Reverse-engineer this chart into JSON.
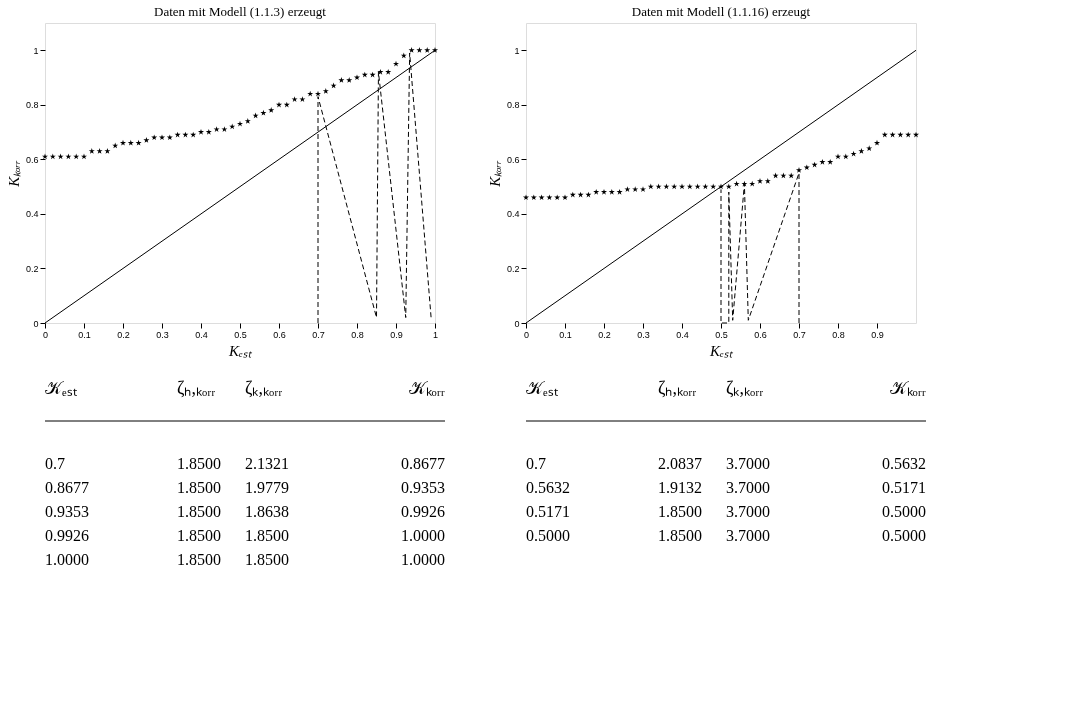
{
  "chart_data": [
    {
      "type": "scatter",
      "title": "Daten mit Modell (1.1.3) erzeugt",
      "xlabel": "Kₑₛₜ",
      "ylabel": "Kₖₒᵣᵣ",
      "xlim": [
        0,
        1
      ],
      "ylim": [
        0,
        1.1
      ],
      "xticks": [
        0,
        0.1,
        0.2,
        0.3,
        0.4,
        0.5,
        0.6,
        0.7,
        0.8,
        0.9,
        1
      ],
      "yticks": [
        0,
        0.2,
        0.4,
        0.6,
        0.8,
        1
      ],
      "grid": false,
      "series": [
        {
          "marker": "star",
          "color": "#000000",
          "x": [
            0,
            0.02,
            0.04,
            0.06,
            0.08,
            0.1,
            0.12,
            0.14,
            0.16,
            0.18,
            0.2,
            0.22,
            0.24,
            0.26,
            0.28,
            0.3,
            0.32,
            0.34,
            0.36,
            0.38,
            0.4,
            0.42,
            0.44,
            0.46,
            0.48,
            0.5,
            0.52,
            0.54,
            0.56,
            0.58,
            0.6,
            0.62,
            0.64,
            0.66,
            0.68,
            0.7,
            0.72,
            0.74,
            0.76,
            0.78,
            0.8,
            0.82,
            0.84,
            0.86,
            0.88,
            0.9,
            0.92,
            0.94,
            0.96,
            0.98,
            1
          ],
          "values": [
            0.61,
            0.61,
            0.61,
            0.61,
            0.61,
            0.61,
            0.63,
            0.63,
            0.63,
            0.65,
            0.66,
            0.66,
            0.66,
            0.67,
            0.68,
            0.68,
            0.68,
            0.69,
            0.69,
            0.69,
            0.7,
            0.7,
            0.71,
            0.71,
            0.72,
            0.73,
            0.74,
            0.76,
            0.77,
            0.78,
            0.8,
            0.8,
            0.82,
            0.82,
            0.84,
            0.84,
            0.85,
            0.87,
            0.89,
            0.89,
            0.9,
            0.91,
            0.91,
            0.92,
            0.92,
            0.95,
            0.98,
            1,
            1,
            1,
            1
          ]
        },
        {
          "type": "line",
          "color": "#000000",
          "line_style": "solid",
          "x": [
            0,
            1
          ],
          "values": [
            0,
            1
          ]
        },
        {
          "type": "line",
          "color": "#000000",
          "line_style": "dashed",
          "x": [
            0.7,
            0.7,
            0.85,
            0.855,
            0.925,
            0.935,
            0.99
          ],
          "values": [
            0,
            0.83,
            0.02,
            0.92,
            0.02,
            0.99,
            0.02
          ]
        }
      ],
      "annotations": [
        "𝒦ₑₛₜ",
        "ζₕ,ₖₒᵣᵣ",
        "ζₖ,ₖₒᵣᵣ",
        "𝒦ₖₒᵣᵣ",
        "0.7",
        "1.8500",
        "2.1321",
        "0.8677",
        "0.8677",
        "1.8500",
        "1.9779",
        "0.9353",
        "0.9353",
        "1.8500",
        "1.8638",
        "0.9926",
        "0.9926",
        "1.8500",
        "1.8500",
        "1.0000",
        "1.0000",
        "1.8500",
        "1.8500",
        "1.0000"
      ]
    },
    {
      "type": "scatter",
      "title": "Daten mit Modell (1.1.16) erzeugt",
      "xlabel": "Kₑₛₜ",
      "ylabel": "Kₖₒᵣᵣ",
      "xlim": [
        0,
        1
      ],
      "ylim": [
        0,
        1.1
      ],
      "xticks": [
        0,
        0.1,
        0.2,
        0.3,
        0.4,
        0.5,
        0.6,
        0.7,
        0.8,
        0.9
      ],
      "yticks": [
        0,
        0.2,
        0.4,
        0.6,
        0.8,
        1
      ],
      "grid": false,
      "series": [
        {
          "marker": "star",
          "color": "#000000",
          "x": [
            0,
            0.02,
            0.04,
            0.06,
            0.08,
            0.1,
            0.12,
            0.14,
            0.16,
            0.18,
            0.2,
            0.22,
            0.24,
            0.26,
            0.28,
            0.3,
            0.32,
            0.34,
            0.36,
            0.38,
            0.4,
            0.42,
            0.44,
            0.46,
            0.48,
            0.5,
            0.52,
            0.54,
            0.56,
            0.58,
            0.6,
            0.62,
            0.64,
            0.66,
            0.68,
            0.7,
            0.72,
            0.74,
            0.76,
            0.78,
            0.8,
            0.82,
            0.84,
            0.86,
            0.88,
            0.9,
            0.92,
            0.94,
            0.96,
            0.98,
            1
          ],
          "values": [
            0.46,
            0.46,
            0.46,
            0.46,
            0.46,
            0.46,
            0.47,
            0.47,
            0.47,
            0.48,
            0.48,
            0.48,
            0.48,
            0.49,
            0.49,
            0.49,
            0.5,
            0.5,
            0.5,
            0.5,
            0.5,
            0.5,
            0.5,
            0.5,
            0.5,
            0.5,
            0.5,
            0.51,
            0.51,
            0.51,
            0.52,
            0.52,
            0.54,
            0.54,
            0.54,
            0.56,
            0.57,
            0.58,
            0.59,
            0.59,
            0.61,
            0.61,
            0.62,
            0.63,
            0.64,
            0.66,
            0.69,
            0.69,
            0.69,
            0.69,
            0.69
          ]
        },
        {
          "type": "line",
          "color": "#000000",
          "line_style": "solid",
          "x": [
            0,
            1
          ],
          "values": [
            0,
            1
          ]
        },
        {
          "type": "line",
          "color": "#000000",
          "line_style": "dashed",
          "x": [
            0.7,
            0.7,
            0.57,
            0.56,
            0.53,
            0.52,
            0.52,
            0.5,
            0.5
          ],
          "values": [
            0,
            0.55,
            0.01,
            0.51,
            0.01,
            0.48,
            0,
            0,
            0.49
          ]
        }
      ],
      "annotations": [
        "𝒦ₑₛₜ",
        "ζₕ,ₖₒᵣᵣ",
        "ζₖ,ₖₒᵣᵣ",
        "𝒦ₖₒᵣᵣ",
        "0.7",
        "2.0837",
        "3.7000",
        "0.5632",
        "0.5632",
        "1.9132",
        "3.7000",
        "0.5171",
        "0.5171",
        "1.8500",
        "3.7000",
        "0.5000",
        "0.5000",
        "1.8500",
        "3.7000",
        "0.5000"
      ]
    }
  ]
}
